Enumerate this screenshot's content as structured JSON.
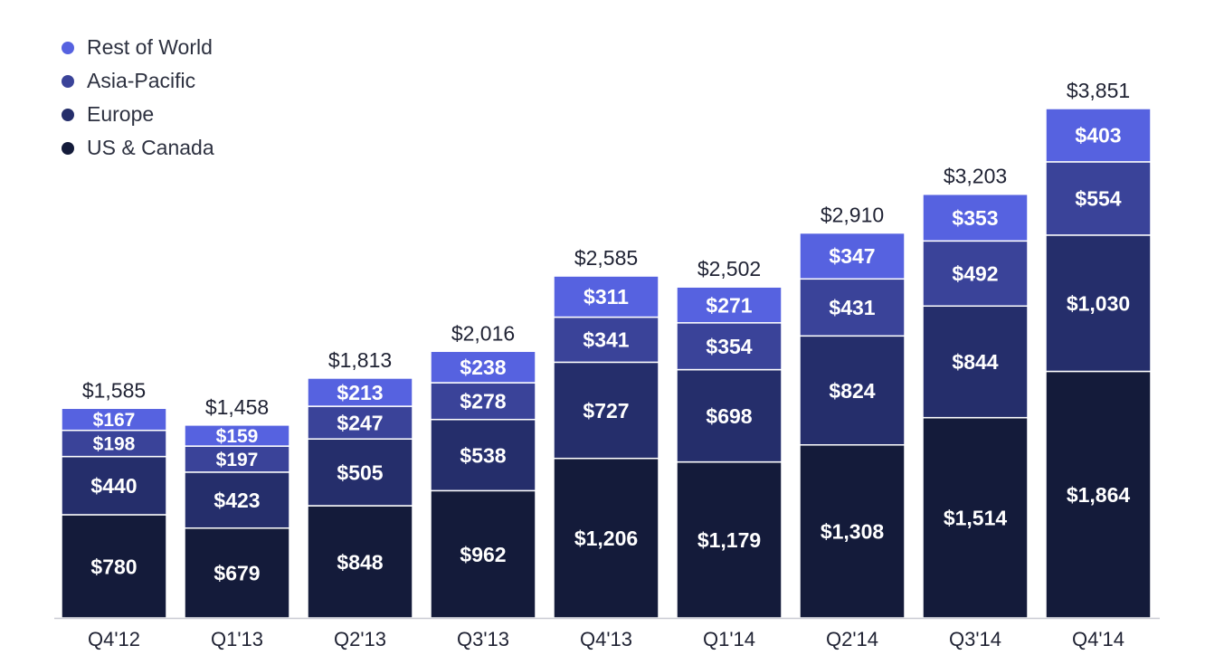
{
  "chart_data": {
    "type": "bar",
    "stacked": true,
    "categories": [
      "Q4'12",
      "Q1'13",
      "Q2'13",
      "Q3'13",
      "Q4'13",
      "Q1'14",
      "Q2'14",
      "Q3'14",
      "Q4'14"
    ],
    "series": [
      {
        "name": "US & Canada",
        "color": "#141b3a",
        "values": [
          780,
          679,
          848,
          962,
          1206,
          1179,
          1308,
          1514,
          1864
        ],
        "labels": [
          "$780",
          "$679",
          "$848",
          "$962",
          "$1,206",
          "$1,179",
          "$1,308",
          "$1,514",
          "$1,864"
        ]
      },
      {
        "name": "Europe",
        "color": "#252e6b",
        "values": [
          440,
          423,
          505,
          538,
          727,
          698,
          824,
          844,
          1030
        ],
        "labels": [
          "$440",
          "$423",
          "$505",
          "$538",
          "$727",
          "$698",
          "$824",
          "$844",
          "$1,030"
        ]
      },
      {
        "name": "Asia-Pacific",
        "color": "#3a4399",
        "values": [
          198,
          197,
          247,
          278,
          341,
          354,
          431,
          492,
          554
        ],
        "labels": [
          "$198",
          "$197",
          "$247",
          "$278",
          "$341",
          "$354",
          "$431",
          "$492",
          "$554"
        ]
      },
      {
        "name": "Rest of World",
        "color": "#5662e0",
        "values": [
          167,
          159,
          213,
          238,
          311,
          271,
          347,
          353,
          403
        ],
        "labels": [
          "$167",
          "$159",
          "$213",
          "$238",
          "$311",
          "$271",
          "$347",
          "$353",
          "$403"
        ]
      }
    ],
    "totals": [
      1585,
      1458,
      1813,
      2016,
      2585,
      2502,
      2910,
      3203,
      3851
    ],
    "total_labels": [
      "$1,585",
      "$1,458",
      "$1,813",
      "$2,016",
      "$2,585",
      "$2,502",
      "$2,910",
      "$3,203",
      "$3,851"
    ],
    "legend_position": "top-left",
    "grid": false
  },
  "legend": [
    {
      "label": "Rest of World",
      "color": "#5662e0"
    },
    {
      "label": "Asia-Pacific",
      "color": "#3a4399"
    },
    {
      "label": "Europe",
      "color": "#252e6b"
    },
    {
      "label": "US & Canada",
      "color": "#141b3a"
    }
  ]
}
